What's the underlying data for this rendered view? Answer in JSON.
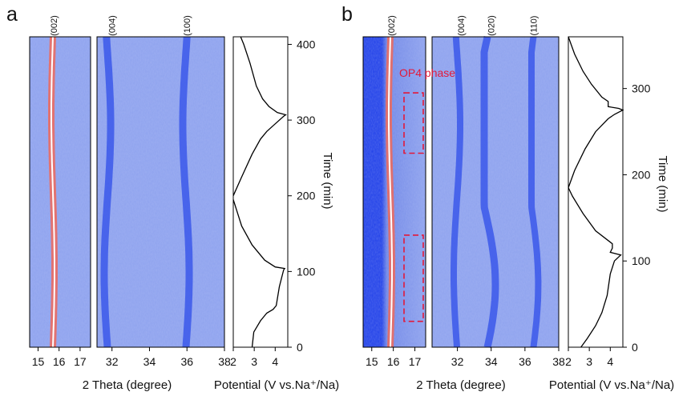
{
  "colors": {
    "map_low": "#1f3fe8",
    "map_mid": "#6f86e6",
    "map_bg": "#8ea2ee",
    "peak_hot": "#ffffff",
    "peak_warm": "#f06a5a",
    "annotation": "#e2193a",
    "curve": "#000000"
  },
  "chart_data": [
    {
      "panel": "a",
      "type": "heatmap",
      "title": "",
      "xlabel": "2 Theta (degree)",
      "ylabel": "Time (min)",
      "ylim": [
        0,
        410
      ],
      "subplots": [
        {
          "name": "left-map",
          "xlim": [
            14.6,
            17.5
          ],
          "xticks": [
            "15",
            "16",
            "17"
          ],
          "reflections": [
            {
              "label": "(002)",
              "two_theta": 15.75
            }
          ]
        },
        {
          "name": "right-map",
          "xlim": [
            31.2,
            38
          ],
          "xticks": [
            "32",
            "34",
            "36",
            "38"
          ],
          "reflections": [
            {
              "label": "(004)",
              "two_theta": 32
            },
            {
              "label": "(100)",
              "two_theta": 36
            }
          ]
        }
      ],
      "potential": {
        "xlabel": "Potential (V vs.Na⁺/Na)",
        "xlim": [
          2,
          4.6
        ],
        "xticks": [
          "2",
          "3",
          "4"
        ],
        "yticks": [
          "0",
          "100",
          "200",
          "300",
          "400"
        ],
        "series": [
          {
            "name": "cycle-1",
            "points": [
              [
                2.9,
                0
              ],
              [
                2.98,
                20
              ],
              [
                3.3,
                35
              ],
              [
                3.6,
                45
              ],
              [
                3.9,
                50
              ],
              [
                4.05,
                55
              ],
              [
                4.2,
                80
              ],
              [
                4.4,
                102
              ],
              [
                4.45,
                104
              ],
              [
                4.0,
                106
              ],
              [
                3.5,
                115
              ],
              [
                2.9,
                135
              ],
              [
                2.4,
                160
              ],
              [
                2.0,
                195
              ]
            ]
          },
          {
            "name": "cycle-2",
            "points": [
              [
                2.0,
                200
              ],
              [
                2.4,
                225
              ],
              [
                2.9,
                255
              ],
              [
                3.3,
                275
              ],
              [
                3.6,
                285
              ],
              [
                4.0,
                295
              ],
              [
                4.4,
                305
              ],
              [
                4.5,
                307
              ],
              [
                4.1,
                310
              ],
              [
                3.7,
                318
              ],
              [
                3.4,
                328
              ],
              [
                3.1,
                345
              ],
              [
                2.8,
                375
              ],
              [
                2.5,
                400
              ],
              [
                2.35,
                410
              ]
            ]
          }
        ]
      }
    },
    {
      "panel": "b",
      "type": "heatmap",
      "title": "",
      "xlabel": "2 Theta (degree)",
      "ylabel": "Time (min)",
      "ylim": [
        0,
        360
      ],
      "subplots": [
        {
          "name": "left-map",
          "xlim": [
            14.6,
            17.5
          ],
          "xticks": [
            "15",
            "16",
            "17"
          ],
          "reflections": [
            {
              "label": "(002)",
              "two_theta": 15.9
            }
          ]
        },
        {
          "name": "right-map",
          "xlim": [
            30.5,
            38
          ],
          "xticks": [
            "32",
            "34",
            "36",
            "38"
          ],
          "reflections": [
            {
              "label": "(004)",
              "two_theta": 32.2
            },
            {
              "label": "(020)",
              "two_theta": 34
            },
            {
              "label": "(110)",
              "two_theta": 36.5
            }
          ]
        }
      ],
      "annotations": [
        {
          "text": "OP4 phase",
          "regions_time": [
            [
              225,
              295
            ],
            [
              30,
              130
            ]
          ]
        }
      ],
      "potential": {
        "xlabel": "Potential (V vs.Na⁺/Na)",
        "xlim": [
          2,
          4.6
        ],
        "xticks": [
          "2",
          "3",
          "4"
        ],
        "yticks": [
          "0",
          "100",
          "200",
          "300"
        ],
        "series": [
          {
            "name": "cycle-1",
            "points": [
              [
                2.6,
                0
              ],
              [
                2.9,
                10
              ],
              [
                3.3,
                25
              ],
              [
                3.6,
                40
              ],
              [
                3.85,
                60
              ],
              [
                4.0,
                85
              ],
              [
                4.2,
                100
              ],
              [
                4.5,
                107
              ],
              [
                4.0,
                110
              ],
              [
                4.1,
                115
              ],
              [
                4.1,
                120
              ],
              [
                3.3,
                135
              ],
              [
                2.7,
                155
              ],
              [
                2.2,
                175
              ],
              [
                2.0,
                185
              ]
            ]
          },
          {
            "name": "cycle-2",
            "points": [
              [
                2.0,
                185
              ],
              [
                2.3,
                205
              ],
              [
                2.8,
                230
              ],
              [
                3.3,
                250
              ],
              [
                3.9,
                265
              ],
              [
                4.2,
                270
              ],
              [
                4.6,
                275
              ],
              [
                4.4,
                277
              ],
              [
                3.9,
                279
              ],
              [
                3.9,
                285
              ],
              [
                3.6,
                290
              ],
              [
                3.1,
                305
              ],
              [
                2.7,
                320
              ],
              [
                2.3,
                340
              ],
              [
                2.0,
                360
              ]
            ]
          }
        ]
      }
    }
  ]
}
